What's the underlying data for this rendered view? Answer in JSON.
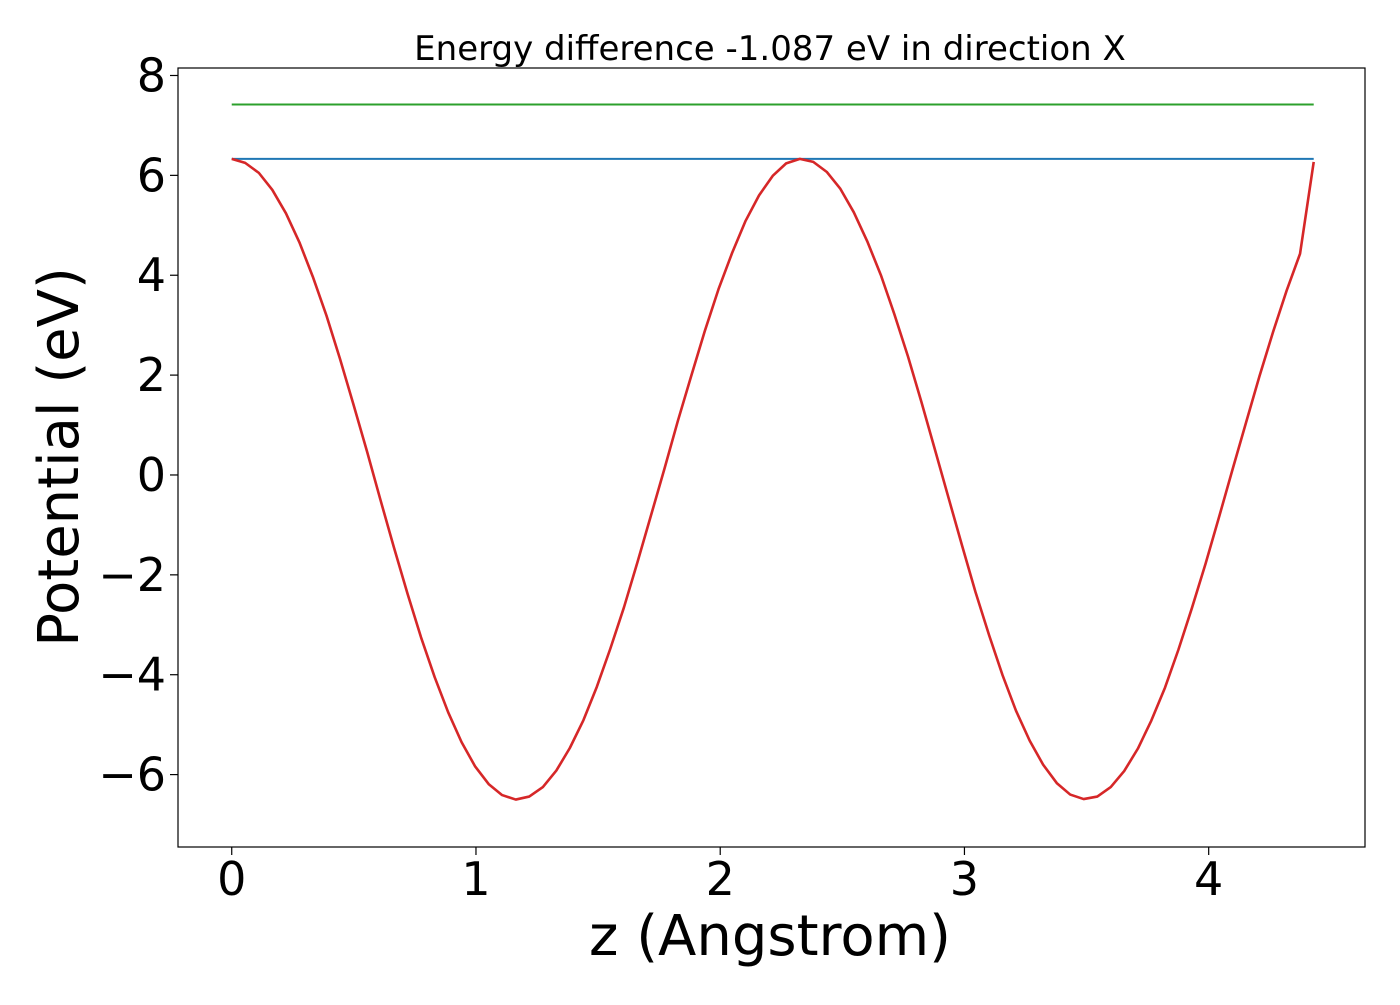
{
  "chart_data": {
    "type": "line",
    "title": "Energy difference -1.087 eV in direction X",
    "xlabel": "z (Angstrom)",
    "ylabel": "Potential (eV)",
    "xlim": [
      -0.22,
      4.64
    ],
    "ylim": [
      -7.45,
      8.15
    ],
    "xticks": [
      0,
      1,
      2,
      3,
      4
    ],
    "xtick_labels": [
      "0",
      "1",
      "2",
      "3",
      "4"
    ],
    "yticks": [
      -6,
      -4,
      -2,
      0,
      2,
      4,
      6,
      8
    ],
    "ytick_labels": [
      "−6",
      "−4",
      "−2",
      "0",
      "2",
      "4",
      "6",
      "8"
    ],
    "grid": false,
    "legend": "none",
    "series": [
      {
        "color": "#2ca02c",
        "x": [
          0,
          4.43
        ],
        "y": [
          7.42,
          7.42
        ]
      },
      {
        "color": "#1f77b4",
        "x": [
          0,
          4.43
        ],
        "y": [
          6.33,
          6.33
        ]
      },
      {
        "color": "#d62728",
        "x": [
          0.0,
          0.055,
          0.111,
          0.166,
          0.222,
          0.277,
          0.332,
          0.388,
          0.443,
          0.498,
          0.554,
          0.609,
          0.664,
          0.72,
          0.775,
          0.831,
          0.886,
          0.941,
          0.997,
          1.052,
          1.107,
          1.163,
          1.218,
          1.274,
          1.329,
          1.384,
          1.44,
          1.495,
          1.55,
          1.606,
          1.661,
          1.716,
          1.772,
          1.827,
          1.883,
          1.938,
          1.993,
          2.049,
          2.104,
          2.159,
          2.215,
          2.27,
          2.326,
          2.381,
          2.436,
          2.492,
          2.547,
          2.602,
          2.658,
          2.713,
          2.769,
          2.824,
          2.879,
          2.935,
          2.99,
          3.045,
          3.101,
          3.156,
          3.211,
          3.267,
          3.322,
          3.378,
          3.433,
          3.488,
          3.544,
          3.599,
          3.654,
          3.71,
          3.765,
          3.821,
          3.876,
          3.931,
          3.987,
          4.042,
          4.097,
          4.153,
          4.208,
          4.264,
          4.319,
          4.374,
          4.43
        ],
        "y": [
          6.33,
          6.25,
          6.05,
          5.71,
          5.24,
          4.66,
          3.97,
          3.19,
          2.33,
          1.42,
          0.47,
          -0.5,
          -1.45,
          -2.38,
          -3.25,
          -4.05,
          -4.75,
          -5.35,
          -5.84,
          -6.19,
          -6.41,
          -6.5,
          -6.44,
          -6.25,
          -5.92,
          -5.47,
          -4.91,
          -4.24,
          -3.48,
          -2.65,
          -1.75,
          -0.82,
          0.13,
          1.09,
          2.01,
          2.9,
          3.72,
          4.45,
          5.09,
          5.6,
          5.99,
          6.24,
          6.33,
          6.27,
          6.07,
          5.73,
          5.26,
          4.68,
          4.0,
          3.22,
          2.37,
          1.46,
          0.51,
          -0.46,
          -1.41,
          -2.34,
          -3.21,
          -4.01,
          -4.72,
          -5.32,
          -5.8,
          -6.17,
          -6.4,
          -6.49,
          -6.44,
          -6.25,
          -5.93,
          -5.48,
          -4.92,
          -4.26,
          -3.5,
          -2.67,
          -1.78,
          -0.85,
          0.1,
          1.05,
          1.98,
          2.87,
          3.69,
          4.43,
          6.27
        ]
      }
    ]
  }
}
